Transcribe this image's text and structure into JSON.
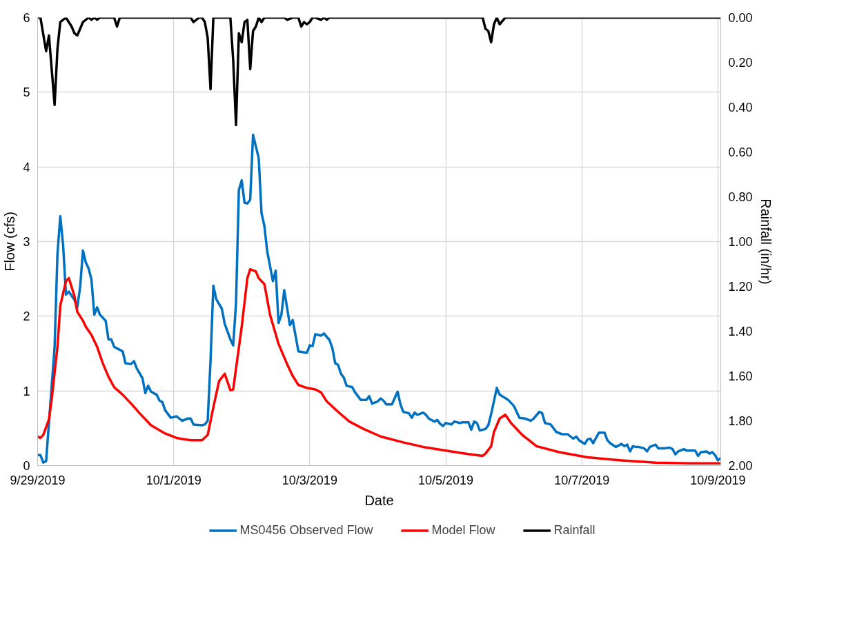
{
  "chart_data": {
    "type": "line",
    "xlabel": "Date",
    "ylabel": "Flow (cfs)",
    "y2label": "Rainfall (in/hr)",
    "xlim": [
      "2019-09-29T00:00",
      "2019-10-09T01:00"
    ],
    "xticks": [
      {
        "value": "2019-09-29T00:00",
        "label": "9/29/2019"
      },
      {
        "value": "2019-10-01T00:00",
        "label": "10/1/2019"
      },
      {
        "value": "2019-10-03T00:00",
        "label": "10/3/2019"
      },
      {
        "value": "2019-10-05T00:00",
        "label": "10/5/2019"
      },
      {
        "value": "2019-10-07T00:00",
        "label": "10/7/2019"
      },
      {
        "value": "2019-10-09T00:00",
        "label": "10/9/2019"
      }
    ],
    "ylim": [
      0,
      6
    ],
    "yticks": [
      0,
      1,
      2,
      3,
      4,
      5,
      6
    ],
    "y2lim": [
      2.0,
      0.0
    ],
    "y2ticks": [
      {
        "value": 0,
        "label": "0.00"
      },
      {
        "value": 0.2,
        "label": "0.20"
      },
      {
        "value": 0.4,
        "label": "0.40"
      },
      {
        "value": 0.6,
        "label": "0.60"
      },
      {
        "value": 0.8,
        "label": "0.80"
      },
      {
        "value": 1.0,
        "label": "1.00"
      },
      {
        "value": 1.2,
        "label": "1.20"
      },
      {
        "value": 1.4,
        "label": "1.40"
      },
      {
        "value": 1.6,
        "label": "1.60"
      },
      {
        "value": 1.8,
        "label": "1.80"
      },
      {
        "value": 2.0,
        "label": "2.00"
      }
    ],
    "grid": true,
    "legend": "bottom",
    "series": [
      {
        "name": "MS0456 Observed Flow",
        "color": "#0070c0",
        "x": [
          "2019-09-29T00:00",
          "2019-09-29T01:00",
          "2019-09-29T02:00",
          "2019-09-29T03:00",
          "2019-09-29T06:00",
          "2019-09-29T07:00",
          "2019-09-29T08:00",
          "2019-09-29T09:00",
          "2019-09-29T10:00",
          "2019-09-29T11:00",
          "2019-09-29T13:00",
          "2019-09-29T14:00",
          "2019-09-29T15:00",
          "2019-09-29T16:00",
          "2019-09-29T17:00",
          "2019-09-29T18:00",
          "2019-09-29T19:00",
          "2019-09-29T20:00",
          "2019-09-29T21:00",
          "2019-09-29T22:00",
          "2019-09-30T00:00",
          "2019-09-30T01:00",
          "2019-09-30T02:00",
          "2019-09-30T03:00",
          "2019-09-30T04:00",
          "2019-09-30T06:00",
          "2019-09-30T07:00",
          "2019-09-30T09:00",
          "2019-09-30T10:00",
          "2019-09-30T11:00",
          "2019-09-30T13:00",
          "2019-09-30T14:00",
          "2019-09-30T15:00",
          "2019-09-30T16:00",
          "2019-09-30T18:00",
          "2019-09-30T19:00",
          "2019-09-30T20:00",
          "2019-09-30T21:00",
          "2019-09-30T23:00",
          "2019-10-01T01:00",
          "2019-10-01T03:00",
          "2019-10-01T05:00",
          "2019-10-01T06:00",
          "2019-10-01T07:00",
          "2019-10-01T10:00",
          "2019-10-01T11:00",
          "2019-10-01T12:00",
          "2019-10-01T13:00",
          "2019-10-01T14:00",
          "2019-10-01T15:00",
          "2019-10-01T17:00",
          "2019-10-01T18:00",
          "2019-10-01T20:00",
          "2019-10-01T21:00",
          "2019-10-01T22:00",
          "2019-10-01T23:00",
          "2019-10-02T00:00",
          "2019-10-02T01:00",
          "2019-10-02T02:00",
          "2019-10-02T03:00",
          "2019-10-02T04:00",
          "2019-10-02T06:00",
          "2019-10-02T07:00",
          "2019-10-02T08:00",
          "2019-10-02T09:00",
          "2019-10-02T11:00",
          "2019-10-02T12:00",
          "2019-10-02T13:00",
          "2019-10-02T14:00",
          "2019-10-02T15:00",
          "2019-10-02T17:00",
          "2019-10-02T18:00",
          "2019-10-02T20:00",
          "2019-10-02T23:00",
          "2019-10-03T00:00",
          "2019-10-03T01:00",
          "2019-10-03T02:00",
          "2019-10-03T04:00",
          "2019-10-03T05:00",
          "2019-10-03T07:00",
          "2019-10-03T08:00",
          "2019-10-03T09:00",
          "2019-10-03T10:00",
          "2019-10-03T11:00",
          "2019-10-03T12:00",
          "2019-10-03T13:00",
          "2019-10-03T15:00",
          "2019-10-03T16:00",
          "2019-10-03T18:00",
          "2019-10-03T20:00",
          "2019-10-03T21:00",
          "2019-10-03T22:00",
          "2019-10-04T00:00",
          "2019-10-04T01:00",
          "2019-10-04T02:00",
          "2019-10-04T03:00",
          "2019-10-04T05:00",
          "2019-10-04T07:00",
          "2019-10-04T08:00",
          "2019-10-04T09:00",
          "2019-10-04T11:00",
          "2019-10-04T12:00",
          "2019-10-04T13:00",
          "2019-10-04T14:00",
          "2019-10-04T16:00",
          "2019-10-04T17:00",
          "2019-10-04T18:00",
          "2019-10-04T20:00",
          "2019-10-04T21:00",
          "2019-10-04T22:00",
          "2019-10-04T23:00",
          "2019-10-05T00:00",
          "2019-10-05T02:00",
          "2019-10-05T03:00",
          "2019-10-05T05:00",
          "2019-10-05T06:00",
          "2019-10-05T08:00",
          "2019-10-05T09:00",
          "2019-10-05T10:00",
          "2019-10-05T11:00",
          "2019-10-05T12:00",
          "2019-10-05T14:00",
          "2019-10-05T15:00",
          "2019-10-05T16:00",
          "2019-10-05T18:00",
          "2019-10-05T19:00",
          "2019-10-05T22:00",
          "2019-10-06T00:00",
          "2019-10-06T02:00",
          "2019-10-06T04:00",
          "2019-10-06T06:00",
          "2019-10-06T07:00",
          "2019-10-06T09:00",
          "2019-10-06T10:00",
          "2019-10-06T11:00",
          "2019-10-06T13:00",
          "2019-10-06T15:00",
          "2019-10-06T17:00",
          "2019-10-06T19:00",
          "2019-10-06T21:00",
          "2019-10-06T22:00",
          "2019-10-06T23:00",
          "2019-10-07T01:00",
          "2019-10-07T02:00",
          "2019-10-07T03:00",
          "2019-10-07T04:00",
          "2019-10-07T06:00",
          "2019-10-07T08:00",
          "2019-10-07T09:00",
          "2019-10-07T10:00",
          "2019-10-07T12:00",
          "2019-10-07T14:00",
          "2019-10-07T15:00",
          "2019-10-07T16:00",
          "2019-10-07T17:00",
          "2019-10-07T18:00",
          "2019-10-07T19:00",
          "2019-10-07T20:00",
          "2019-10-07T22:00",
          "2019-10-07T23:00",
          "2019-10-08T00:00",
          "2019-10-08T02:00",
          "2019-10-08T03:00",
          "2019-10-08T05:00",
          "2019-10-08T07:00",
          "2019-10-08T08:00",
          "2019-10-08T09:00",
          "2019-10-08T10:00",
          "2019-10-08T12:00",
          "2019-10-08T13:00",
          "2019-10-08T16:00",
          "2019-10-08T17:00",
          "2019-10-08T18:00",
          "2019-10-08T20:00",
          "2019-10-08T21:00",
          "2019-10-08T22:00",
          "2019-10-08T23:00",
          "2019-10-09T00:00",
          "2019-10-09T01:00"
        ],
        "values": [
          0.14,
          0.14,
          0.04,
          0.06,
          1.59,
          2.83,
          3.34,
          2.95,
          2.29,
          2.33,
          2.22,
          2.12,
          2.39,
          2.88,
          2.72,
          2.64,
          2.49,
          2.02,
          2.12,
          2.02,
          1.94,
          1.69,
          1.69,
          1.59,
          1.57,
          1.53,
          1.37,
          1.36,
          1.4,
          1.3,
          1.17,
          0.97,
          1.07,
          0.99,
          0.95,
          0.87,
          0.85,
          0.74,
          0.64,
          0.66,
          0.6,
          0.63,
          0.63,
          0.55,
          0.54,
          0.55,
          0.6,
          1.4,
          2.41,
          2.23,
          2.1,
          1.9,
          1.69,
          1.61,
          2.18,
          3.69,
          3.82,
          3.52,
          3.51,
          3.56,
          4.43,
          4.12,
          3.38,
          3.21,
          2.87,
          2.47,
          2.61,
          1.91,
          2.02,
          2.35,
          1.88,
          1.95,
          1.53,
          1.51,
          1.61,
          1.6,
          1.76,
          1.74,
          1.77,
          1.68,
          1.57,
          1.37,
          1.35,
          1.23,
          1.18,
          1.07,
          1.05,
          0.98,
          0.88,
          0.88,
          0.93,
          0.83,
          0.86,
          0.9,
          0.87,
          0.82,
          0.82,
          0.99,
          0.82,
          0.72,
          0.7,
          0.64,
          0.71,
          0.68,
          0.71,
          0.68,
          0.63,
          0.59,
          0.61,
          0.56,
          0.53,
          0.57,
          0.55,
          0.59,
          0.57,
          0.58,
          0.58,
          0.48,
          0.59,
          0.57,
          0.47,
          0.49,
          0.54,
          0.69,
          1.04,
          0.95,
          0.88,
          0.8,
          0.64,
          0.63,
          0.6,
          0.63,
          0.72,
          0.7,
          0.57,
          0.55,
          0.45,
          0.42,
          0.42,
          0.36,
          0.39,
          0.34,
          0.29,
          0.35,
          0.36,
          0.3,
          0.44,
          0.44,
          0.34,
          0.3,
          0.25,
          0.29,
          0.26,
          0.28,
          0.19,
          0.26,
          0.25,
          0.25,
          0.23,
          0.19,
          0.25,
          0.28,
          0.23,
          0.23,
          0.24,
          0.22,
          0.15,
          0.19,
          0.22,
          0.2,
          0.2,
          0.13,
          0.18,
          0.19,
          0.16,
          0.18,
          0.14,
          0.07,
          0.1
        ]
      },
      {
        "name": "Model Flow",
        "color": "#ff0000",
        "x": [
          "2019-09-29T00:00",
          "2019-09-29T01:00",
          "2019-09-29T02:00",
          "2019-09-29T04:00",
          "2019-09-29T05:00",
          "2019-09-29T07:00",
          "2019-09-29T08:00",
          "2019-09-29T10:00",
          "2019-09-29T11:00",
          "2019-09-29T13:00",
          "2019-09-29T14:00",
          "2019-09-29T16:00",
          "2019-09-29T17:00",
          "2019-09-29T19:00",
          "2019-09-29T21:00",
          "2019-09-29T23:00",
          "2019-09-30T01:00",
          "2019-09-30T03:00",
          "2019-09-30T06:00",
          "2019-09-30T09:00",
          "2019-09-30T12:00",
          "2019-09-30T16:00",
          "2019-09-30T21:00",
          "2019-10-01T01:00",
          "2019-10-01T06:00",
          "2019-10-01T10:00",
          "2019-10-01T12:00",
          "2019-10-01T14:00",
          "2019-10-01T16:00",
          "2019-10-01T18:00",
          "2019-10-01T20:00",
          "2019-10-01T21:00",
          "2019-10-02T00:00",
          "2019-10-02T02:00",
          "2019-10-02T03:00",
          "2019-10-02T05:00",
          "2019-10-02T06:00",
          "2019-10-02T08:00",
          "2019-10-02T10:00",
          "2019-10-02T13:00",
          "2019-10-02T16:00",
          "2019-10-02T18:00",
          "2019-10-02T20:00",
          "2019-10-02T23:00",
          "2019-10-03T02:00",
          "2019-10-03T04:00",
          "2019-10-03T06:00",
          "2019-10-03T10:00",
          "2019-10-03T14:00",
          "2019-10-03T19:00",
          "2019-10-04T01:00",
          "2019-10-04T09:00",
          "2019-10-04T16:00",
          "2019-10-05T00:00",
          "2019-10-05T07:00",
          "2019-10-05T13:00",
          "2019-10-05T14:00",
          "2019-10-05T16:00",
          "2019-10-05T17:00",
          "2019-10-05T19:00",
          "2019-10-05T21:00",
          "2019-10-05T23:00",
          "2019-10-06T03:00",
          "2019-10-06T08:00",
          "2019-10-06T16:00",
          "2019-10-07T02:00",
          "2019-10-07T14:00",
          "2019-10-08T02:00",
          "2019-10-08T14:00",
          "2019-10-09T00:00",
          "2019-10-09T01:00"
        ],
        "values": [
          0.39,
          0.37,
          0.41,
          0.62,
          0.9,
          1.59,
          2.14,
          2.47,
          2.51,
          2.27,
          2.06,
          1.94,
          1.86,
          1.75,
          1.59,
          1.37,
          1.19,
          1.05,
          0.95,
          0.83,
          0.7,
          0.54,
          0.43,
          0.37,
          0.34,
          0.34,
          0.41,
          0.78,
          1.13,
          1.23,
          1.01,
          1.02,
          1.86,
          2.51,
          2.63,
          2.6,
          2.51,
          2.43,
          2.02,
          1.63,
          1.36,
          1.2,
          1.08,
          1.04,
          1.02,
          0.98,
          0.86,
          0.72,
          0.59,
          0.49,
          0.39,
          0.31,
          0.25,
          0.2,
          0.16,
          0.13,
          0.16,
          0.26,
          0.45,
          0.63,
          0.68,
          0.57,
          0.41,
          0.26,
          0.18,
          0.11,
          0.07,
          0.04,
          0.03,
          0.03,
          0.03
        ]
      },
      {
        "name": "Rainfall",
        "color": "#000000",
        "axis": "y2",
        "x": [
          "2019-09-29T00:00",
          "2019-09-29T01:00",
          "2019-09-29T03:00",
          "2019-09-29T04:00",
          "2019-09-29T06:00",
          "2019-09-29T07:00",
          "2019-09-29T08:00",
          "2019-09-29T10:00",
          "2019-09-29T12:00",
          "2019-09-29T13:00",
          "2019-09-29T14:00",
          "2019-09-29T16:00",
          "2019-09-29T18:00",
          "2019-09-29T19:00",
          "2019-09-29T20:00",
          "2019-09-29T21:00",
          "2019-09-29T22:00",
          "2019-09-30T03:00",
          "2019-09-30T04:00",
          "2019-09-30T05:00",
          "2019-10-01T06:00",
          "2019-10-01T07:00",
          "2019-10-01T09:00",
          "2019-10-01T10:00",
          "2019-10-01T11:00",
          "2019-10-01T12:00",
          "2019-10-01T13:00",
          "2019-10-01T14:00",
          "2019-10-01T20:00",
          "2019-10-01T21:00",
          "2019-10-01T22:00",
          "2019-10-01T23:00",
          "2019-10-02T00:00",
          "2019-10-02T01:00",
          "2019-10-02T02:00",
          "2019-10-02T03:00",
          "2019-10-02T04:00",
          "2019-10-02T05:00",
          "2019-10-02T06:00",
          "2019-10-02T07:00",
          "2019-10-02T08:00",
          "2019-10-02T15:00",
          "2019-10-02T16:00",
          "2019-10-02T18:00",
          "2019-10-02T20:00",
          "2019-10-02T21:00",
          "2019-10-02T22:00",
          "2019-10-02T23:00",
          "2019-10-03T00:00",
          "2019-10-03T01:00",
          "2019-10-03T02:00",
          "2019-10-03T04:00",
          "2019-10-03T05:00",
          "2019-10-03T06:00",
          "2019-10-03T07:00",
          "2019-10-05T13:00",
          "2019-10-05T14:00",
          "2019-10-05T15:00",
          "2019-10-05T16:00",
          "2019-10-05T17:00",
          "2019-10-05T18:00",
          "2019-10-05T19:00",
          "2019-10-05T21:00",
          "2019-10-09T01:00"
        ],
        "values": [
          0.0,
          0.0,
          0.15,
          0.08,
          0.39,
          0.14,
          0.02,
          0.0,
          0.04,
          0.07,
          0.08,
          0.02,
          0.0,
          0.01,
          0.0,
          0.01,
          0.0,
          0.0,
          0.04,
          0.0,
          0.0,
          0.02,
          0.0,
          0.0,
          0.02,
          0.09,
          0.32,
          0.0,
          0.0,
          0.19,
          0.48,
          0.07,
          0.11,
          0.02,
          0.01,
          0.23,
          0.06,
          0.04,
          0.0,
          0.02,
          0.0,
          0.0,
          0.01,
          0.0,
          0.0,
          0.04,
          0.02,
          0.03,
          0.02,
          0.0,
          0.0,
          0.01,
          0.0,
          0.01,
          0.0,
          0.0,
          0.05,
          0.06,
          0.11,
          0.03,
          0.0,
          0.03,
          0.0,
          0.0
        ]
      }
    ]
  }
}
